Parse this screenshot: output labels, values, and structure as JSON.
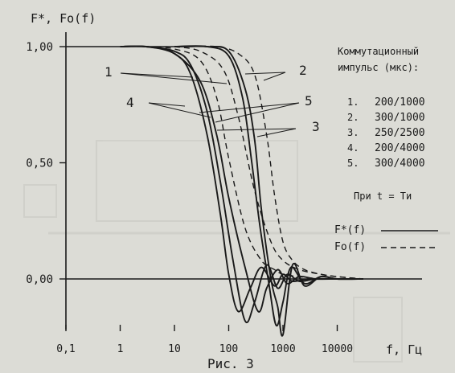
{
  "chart_data": {
    "type": "line",
    "ylabel": "F*, Fo(f)",
    "xlabel": "f, Гц",
    "caption": "Рис. 3",
    "x_scale": "log",
    "xlim": [
      0.1,
      100000
    ],
    "ylim": [
      -0.32,
      1.08
    ],
    "x_ticks": [
      {
        "value": 0.1,
        "label": "0,1"
      },
      {
        "value": 1,
        "label": "1"
      },
      {
        "value": 10,
        "label": "10"
      },
      {
        "value": 100,
        "label": "100"
      },
      {
        "value": 1000,
        "label": "1000"
      },
      {
        "value": 10000,
        "label": "10000"
      }
    ],
    "y_ticks": [
      {
        "value": 1.0,
        "label": "1,00"
      },
      {
        "value": 0.5,
        "label": "0,50"
      },
      {
        "value": 0.0,
        "label": "0,00"
      }
    ],
    "legend_title": "Коммутационный импульс (мкс):",
    "condition": "При t = Tи",
    "legend_entries": [
      {
        "num": "1.",
        "value": "200/1000"
      },
      {
        "num": "2.",
        "value": "300/1000"
      },
      {
        "num": "3.",
        "value": "250/2500"
      },
      {
        "num": "4.",
        "value": "200/4000"
      },
      {
        "num": "5.",
        "value": "300/4000"
      }
    ],
    "line_styles": [
      {
        "label": "F*(f)",
        "style": "solid"
      },
      {
        "label": "Fo(f)",
        "style": "dashed"
      }
    ],
    "callout_labels": [
      {
        "id": "1",
        "text": "1"
      },
      {
        "id": "2",
        "text": "2"
      },
      {
        "id": "3",
        "text": "3"
      },
      {
        "id": "4",
        "text": "4"
      },
      {
        "id": "5",
        "text": "5"
      }
    ],
    "series": [
      {
        "name": "1",
        "style": "solid",
        "x": [
          1,
          3,
          10,
          20,
          40,
          70,
          120,
          200,
          300,
          500,
          800,
          1200,
          2000,
          4000,
          10000,
          30000
        ],
        "y": [
          1.0,
          1.0,
          0.98,
          0.92,
          0.72,
          0.42,
          0.08,
          -0.18,
          -0.1,
          0.06,
          -0.04,
          0.02,
          -0.01,
          0.0,
          0.0,
          0.0
        ]
      },
      {
        "name": "4",
        "style": "solid",
        "x": [
          1,
          3,
          10,
          20,
          40,
          70,
          100,
          150,
          250,
          400,
          700,
          1000,
          1500,
          3000,
          10000,
          30000
        ],
        "y": [
          1.0,
          1.0,
          0.97,
          0.88,
          0.62,
          0.28,
          0.02,
          -0.14,
          -0.04,
          0.05,
          -0.03,
          0.02,
          -0.01,
          0.0,
          0.0,
          0.0
        ]
      },
      {
        "name": "2",
        "style": "solid",
        "x": [
          10,
          40,
          100,
          200,
          300,
          400,
          600,
          800,
          1000,
          1500,
          2500,
          5000,
          10000,
          30000
        ],
        "y": [
          1.0,
          1.0,
          0.98,
          0.82,
          0.6,
          0.3,
          0.0,
          -0.12,
          -0.24,
          0.06,
          -0.03,
          0.01,
          0.0,
          0.0
        ]
      },
      {
        "name": "5",
        "style": "solid",
        "x": [
          10,
          40,
          100,
          180,
          260,
          380,
          550,
          750,
          1000,
          1400,
          2500,
          5000,
          10000,
          30000
        ],
        "y": [
          1.0,
          1.0,
          0.96,
          0.78,
          0.52,
          0.22,
          -0.02,
          -0.2,
          -0.1,
          0.05,
          -0.02,
          0.01,
          0.0,
          0.0
        ]
      },
      {
        "name": "3",
        "style": "solid",
        "x": [
          1,
          3,
          10,
          30,
          60,
          100,
          200,
          350,
          500,
          800,
          1200,
          2000,
          4000,
          10000,
          30000
        ],
        "y": [
          1.0,
          1.0,
          0.97,
          0.85,
          0.62,
          0.35,
          0.05,
          -0.14,
          -0.04,
          0.04,
          -0.02,
          0.01,
          0.0,
          0.0,
          0.0
        ]
      },
      {
        "name": "1",
        "style": "dashed",
        "x": [
          3,
          10,
          30,
          60,
          100,
          200,
          400,
          700,
          1000,
          2000,
          5000,
          10000,
          30000
        ],
        "y": [
          1.0,
          0.99,
          0.94,
          0.78,
          0.52,
          0.22,
          0.08,
          0.04,
          0.02,
          0.01,
          0.0,
          0.0,
          0.0
        ]
      },
      {
        "name": "2",
        "style": "dashed",
        "x": [
          20,
          60,
          150,
          300,
          500,
          700,
          1000,
          1500,
          2500,
          5000,
          10000,
          30000
        ],
        "y": [
          1.0,
          1.0,
          0.97,
          0.88,
          0.62,
          0.36,
          0.16,
          0.08,
          0.04,
          0.02,
          0.01,
          0.0
        ]
      },
      {
        "name": "3",
        "style": "dashed",
        "x": [
          10,
          30,
          80,
          150,
          300,
          600,
          1000,
          2000,
          5000,
          10000,
          30000
        ],
        "y": [
          1.0,
          0.98,
          0.9,
          0.7,
          0.38,
          0.16,
          0.08,
          0.04,
          0.02,
          0.01,
          0.0
        ]
      }
    ]
  }
}
